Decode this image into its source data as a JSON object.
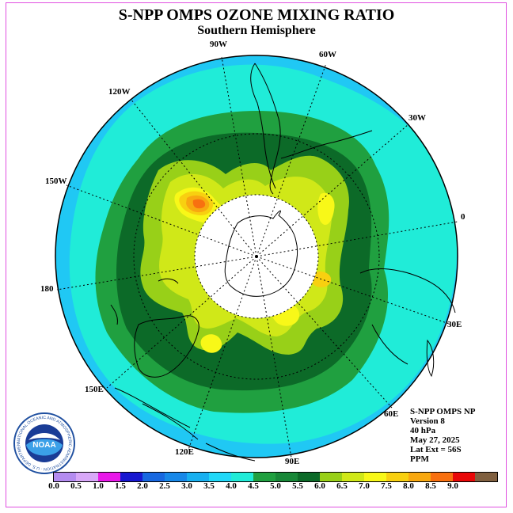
{
  "header": {
    "title": "S-NPP OMPS OZONE MIXING RATIO",
    "subtitle": "Southern Hemisphere"
  },
  "longitude_labels": [
    {
      "id": "90w",
      "text": "90W"
    },
    {
      "id": "60w",
      "text": "60W"
    },
    {
      "id": "120w",
      "text": "120W"
    },
    {
      "id": "30w",
      "text": "30W"
    },
    {
      "id": "150w",
      "text": "150W"
    },
    {
      "id": "0",
      "text": "0"
    },
    {
      "id": "180",
      "text": "180"
    },
    {
      "id": "30e",
      "text": "30E"
    },
    {
      "id": "150e",
      "text": "150E"
    },
    {
      "id": "60e",
      "text": "60E"
    },
    {
      "id": "120e",
      "text": "120E"
    },
    {
      "id": "90e",
      "text": "90E"
    }
  ],
  "info": {
    "instrument": "S-NPP OMPS NP",
    "version": "Version 8",
    "level": "40 hPa",
    "date": "May 27, 2025",
    "lat_ext": "Lat Ext = 56S",
    "units": "PPM"
  },
  "logo": {
    "text": "NOAA",
    "ring_text": "NATIONAL OCEANIC AND ATMOSPHERIC ADMINISTRATION · U.S. DEPARTMENT OF COMMERCE"
  },
  "colorbar": {
    "ticks": [
      "0.0",
      "0.5",
      "1.0",
      "1.5",
      "2.0",
      "2.5",
      "3.0",
      "3.5",
      "4.0",
      "4.5",
      "5.0",
      "5.5",
      "6.0",
      "6.5",
      "7.0",
      "7.5",
      "8.0",
      "8.5",
      "9.0"
    ],
    "colors": [
      "#b48cf0",
      "#d8a8f8",
      "#e818e8",
      "#1818d0",
      "#1868e0",
      "#1888e8",
      "#18b0f0",
      "#20d8f8",
      "#20ecd8",
      "#20a040",
      "#188838",
      "#0c6a28",
      "#98d018",
      "#d0e818",
      "#f8f818",
      "#f8d010",
      "#f8a810",
      "#f87010",
      "#e80808",
      "#806040"
    ]
  }
}
